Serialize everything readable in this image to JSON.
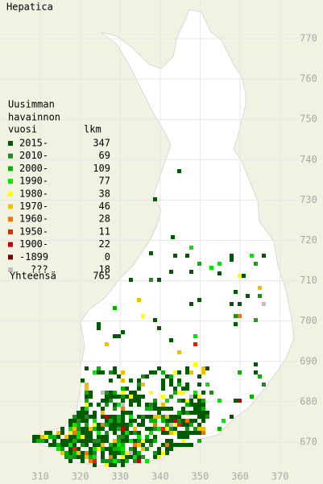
{
  "title": "Hepatica",
  "legend": {
    "heading": [
      "Uusimman",
      "havainnon",
      "vuosi"
    ],
    "count_heading": "lkm",
    "rows": [
      {
        "label": "2015-",
        "count": 347,
        "color": "#005a00"
      },
      {
        "label": "2010-",
        "count": 69,
        "color": "#1e8c1e"
      },
      {
        "label": "2000-",
        "count": 109,
        "color": "#00b400"
      },
      {
        "label": "1990-",
        "count": 77,
        "color": "#00e600"
      },
      {
        "label": "1980-",
        "count": 38,
        "color": "#ffff00"
      },
      {
        "label": "1970-",
        "count": 46,
        "color": "#f0c000"
      },
      {
        "label": "1960-",
        "count": 28,
        "color": "#f07800"
      },
      {
        "label": "1950-",
        "count": 11,
        "color": "#e02800"
      },
      {
        "label": "1900-",
        "count": 22,
        "color": "#c80000"
      },
      {
        "label": "-1899",
        "count": 0,
        "color": "#800000"
      },
      {
        "label": "???",
        "count": 18,
        "color": "#c0c0c0"
      }
    ],
    "total_label": "Yhteensä",
    "total": 765
  },
  "axes": {
    "x_labels": [
      "310",
      "320",
      "330",
      "340",
      "350",
      "360",
      "370"
    ],
    "y_labels": [
      "770",
      "760",
      "750",
      "740",
      "730",
      "720",
      "710",
      "700",
      "690",
      "680",
      "670"
    ]
  }
}
